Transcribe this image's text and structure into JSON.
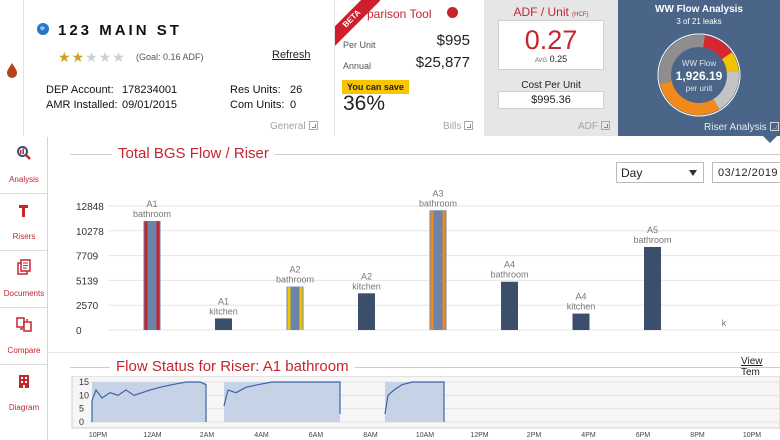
{
  "property": {
    "address": "123 MAIN ST",
    "stars_filled": 2,
    "stars_total": 5,
    "goal": "(Goal: 0.16 ADF)",
    "refresh_label": "Refresh",
    "dep_account_label": "DEP Account:",
    "dep_account_value": "178234001",
    "amr_label": "AMR Installed:",
    "amr_value": "09/01/2015",
    "res_units_label": "Res Units:",
    "res_units_value": "26",
    "com_units_label": "Com Units:",
    "com_units_value": "0",
    "panel_link": "General"
  },
  "comparison": {
    "beta": "BETA",
    "title": "parison Tool",
    "per_unit_label": "Per Unit",
    "per_unit_value": "$995",
    "annual_label": "Annual",
    "annual_value": "$25,877",
    "save_label": "You can save",
    "save_value": "36%",
    "panel_link": "Bills"
  },
  "adf": {
    "title": "ADF / Unit",
    "title_unit": "(HCF)",
    "value": "0.27",
    "avg_label": "AVG",
    "avg_value": "0.25",
    "cost_label": "Cost Per Unit",
    "cost_value": "$995.36",
    "panel_link": "ADF"
  },
  "ww_flow": {
    "title": "WW Flow Analysis",
    "subtitle": "3 of 21 leaks",
    "center_label": "WW Flow",
    "center_value": "1,926.19",
    "center_unit": "per unit",
    "panel_link": "Riser Analysis",
    "donut_colors": [
      "#d6262e",
      "#f2c300",
      "#c4c4c4",
      "#f08a1c",
      "#8e8e8e"
    ],
    "donut_shares": [
      0.13,
      0.08,
      0.18,
      0.3,
      0.31
    ]
  },
  "sidebar": {
    "items": [
      {
        "label": "Analysis",
        "icon": "analysis-icon"
      },
      {
        "label": "Risers",
        "icon": "risers-icon"
      },
      {
        "label": "Documents",
        "icon": "documents-icon"
      },
      {
        "label": "Compare",
        "icon": "compare-icon"
      },
      {
        "label": "Diagram",
        "icon": "diagram-icon"
      }
    ]
  },
  "controls": {
    "period": "Day",
    "date": "03/12/2019"
  },
  "chart_data": [
    {
      "type": "bar",
      "title": "Total BGS Flow / Riser",
      "yticks": [
        "12848",
        "10278",
        "7709",
        "5139",
        "2570",
        "0"
      ],
      "ylim": [
        0,
        12848
      ],
      "bars": [
        {
          "top": "A1",
          "bottom": "bathroom",
          "value": 11300,
          "outline": "#c4262e"
        },
        {
          "top": "A1",
          "bottom": "kitchen",
          "value": 1200,
          "outline": ""
        },
        {
          "top": "A2",
          "bottom": "bathroom",
          "value": 4500,
          "outline": "#f2c300"
        },
        {
          "top": "A2",
          "bottom": "kitchen",
          "value": 3800,
          "outline": ""
        },
        {
          "top": "A3",
          "bottom": "bathroom",
          "value": 12400,
          "outline": "#f08a1c"
        },
        {
          "top": "A4",
          "bottom": "bathroom",
          "value": 5000,
          "outline": ""
        },
        {
          "top": "A4",
          "bottom": "kitchen",
          "value": 1700,
          "outline": ""
        },
        {
          "top": "A5",
          "bottom": "bathroom",
          "value": 8600,
          "outline": ""
        },
        {
          "top": "",
          "bottom": "k",
          "value": 0,
          "outline": ""
        }
      ],
      "grid": true
    },
    {
      "type": "area",
      "title": "Flow Status for Riser: A1 bathroom",
      "view_link": "View Tem",
      "yticks": [
        "15",
        "10",
        "5",
        "0"
      ],
      "ylim": [
        0,
        15
      ],
      "xticks": [
        "10PM",
        "12AM",
        "2AM",
        "4AM",
        "6AM",
        "8AM",
        "10AM",
        "12PM",
        "2PM",
        "4PM",
        "6PM",
        "8PM",
        "10PM"
      ]
    }
  ]
}
